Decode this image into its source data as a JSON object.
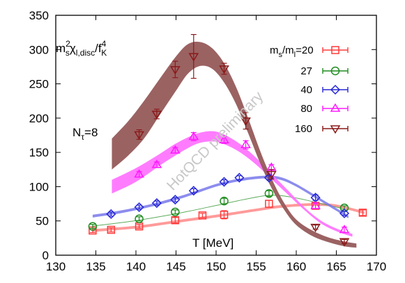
{
  "chart_data": {
    "type": "scatter",
    "ylabel": {
      "main": "m",
      "sup1": "2",
      "sub1": "s",
      "chi": "χ",
      "sub2": "l,disc",
      "slash": "/f",
      "sup2": "4",
      "sub3": "K"
    },
    "xlabel": "T [MeV]",
    "annotation": {
      "main": "N",
      "sub": "τ",
      "rest": "=8"
    },
    "watermark": "HotQCD preliminary",
    "xlim": [
      130,
      170
    ],
    "ylim": [
      0,
      350
    ],
    "xticks": [
      "130",
      "135",
      "140",
      "145",
      "150",
      "155",
      "160",
      "165",
      "170"
    ],
    "yticks": [
      "0",
      "50",
      "100",
      "150",
      "200",
      "250",
      "300",
      "350"
    ],
    "legend_title_main": "m",
    "legend_title_sub1": "s",
    "legend_title_mid": "/m",
    "legend_title_sub2": "l",
    "legend_placement": "top-right",
    "series": [
      {
        "name": "20",
        "color": "#ff3a3a",
        "marker": "square",
        "points": [
          [
            134.6,
            36,
            3
          ],
          [
            136.9,
            37,
            3
          ],
          [
            140.4,
            42,
            3
          ],
          [
            144.9,
            51,
            4
          ],
          [
            148.3,
            58,
            3
          ],
          [
            151.0,
            59,
            6
          ],
          [
            156.6,
            75,
            5
          ],
          [
            162.4,
            72,
            4
          ],
          [
            168.3,
            62,
            4
          ]
        ],
        "band": [
          [
            134.6,
            38,
            34
          ],
          [
            140.0,
            43,
            39
          ],
          [
            145.0,
            51,
            47
          ],
          [
            150.0,
            59,
            55
          ],
          [
            155.0,
            68,
            64
          ],
          [
            158.0,
            73,
            69
          ],
          [
            162.0,
            76,
            72
          ],
          [
            165.0,
            74,
            70
          ],
          [
            168.5,
            64,
            60
          ]
        ]
      },
      {
        "name": "27",
        "color": "#1f8c1f",
        "marker": "circle",
        "points": [
          [
            134.6,
            42,
            3
          ],
          [
            140.4,
            53,
            3
          ],
          [
            144.9,
            63,
            3
          ],
          [
            151.0,
            79,
            4
          ],
          [
            156.6,
            90,
            4
          ],
          [
            166.0,
            69,
            3
          ]
        ],
        "band": [
          [
            134.6,
            43,
            42
          ],
          [
            140.0,
            51,
            50
          ],
          [
            145.0,
            61,
            60
          ],
          [
            150.0,
            73,
            72
          ],
          [
            154.0,
            83,
            82
          ],
          [
            157.0,
            88,
            87
          ],
          [
            160.0,
            84,
            83
          ],
          [
            163.0,
            76,
            75
          ],
          [
            166.0,
            68,
            67
          ]
        ]
      },
      {
        "name": "40",
        "color": "#2727d6",
        "marker": "diamond",
        "points": [
          [
            136.9,
            60,
            3
          ],
          [
            140.4,
            70,
            3
          ],
          [
            142.6,
            76,
            3
          ],
          [
            144.9,
            81,
            3
          ],
          [
            147.2,
            94,
            3
          ],
          [
            151.0,
            107,
            3
          ],
          [
            152.9,
            113,
            3
          ],
          [
            156.6,
            113,
            3
          ],
          [
            162.4,
            84,
            4
          ],
          [
            166.0,
            61,
            3
          ]
        ],
        "band": [
          [
            134.6,
            59,
            55
          ],
          [
            138.0,
            65,
            61
          ],
          [
            142.0,
            75,
            71
          ],
          [
            146.0,
            88,
            84
          ],
          [
            150.0,
            104,
            100
          ],
          [
            153.0,
            112,
            108
          ],
          [
            156.0,
            116,
            112
          ],
          [
            158.0,
            114,
            110
          ],
          [
            160.0,
            104,
            100
          ],
          [
            163.0,
            83,
            79
          ],
          [
            166.5,
            58,
            54
          ]
        ]
      },
      {
        "name": "80",
        "color": "#ff1aff",
        "marker": "triangle-up",
        "points": [
          [
            140.4,
            118,
            4
          ],
          [
            142.6,
            132,
            4
          ],
          [
            144.9,
            153,
            4
          ],
          [
            147.2,
            173,
            6
          ],
          [
            151.0,
            168,
            5
          ],
          [
            153.7,
            161,
            6
          ],
          [
            156.9,
            128,
            4
          ],
          [
            162.4,
            72,
            4
          ],
          [
            166.0,
            37,
            4
          ]
        ],
        "band": [
          [
            137.0,
            110,
            90
          ],
          [
            140.0,
            127,
            107
          ],
          [
            143.0,
            148,
            131
          ],
          [
            145.0,
            163,
            146
          ],
          [
            147.5,
            177,
            162
          ],
          [
            149.5,
            181,
            166
          ],
          [
            151.0,
            176,
            162
          ],
          [
            153.0,
            162,
            150
          ],
          [
            155.0,
            142,
            132
          ],
          [
            157.0,
            118,
            110
          ],
          [
            159.0,
            94,
            88
          ],
          [
            161.0,
            70,
            66
          ],
          [
            163.0,
            51,
            47
          ],
          [
            165.0,
            39,
            35
          ],
          [
            167.0,
            31,
            27
          ]
        ]
      },
      {
        "name": "160",
        "color": "#8b1a1a",
        "marker": "triangle-down",
        "points": [
          [
            140.4,
            176,
            7
          ],
          [
            142.6,
            206,
            7
          ],
          [
            144.9,
            271,
            12
          ],
          [
            147.2,
            290,
            32
          ],
          [
            151.0,
            272,
            8
          ],
          [
            153.7,
            196,
            12
          ],
          [
            156.9,
            118,
            7
          ],
          [
            162.4,
            41,
            3
          ],
          [
            166.0,
            20,
            3
          ]
        ],
        "band": [
          [
            137.0,
            170,
            125
          ],
          [
            139.0,
            195,
            145
          ],
          [
            141.0,
            225,
            170
          ],
          [
            143.0,
            258,
            205
          ],
          [
            145.0,
            290,
            240
          ],
          [
            146.5,
            308,
            265
          ],
          [
            148.0,
            311,
            276
          ],
          [
            149.5,
            302,
            272
          ],
          [
            151.0,
            280,
            252
          ],
          [
            152.5,
            245,
            220
          ],
          [
            154.0,
            200,
            178
          ],
          [
            155.5,
            152,
            134
          ],
          [
            157.0,
            110,
            96
          ],
          [
            158.5,
            76,
            66
          ],
          [
            160.0,
            52,
            44
          ],
          [
            162.0,
            36,
            28
          ],
          [
            164.0,
            26,
            19
          ],
          [
            166.0,
            20,
            13
          ],
          [
            167.5,
            17,
            11
          ]
        ]
      }
    ]
  }
}
